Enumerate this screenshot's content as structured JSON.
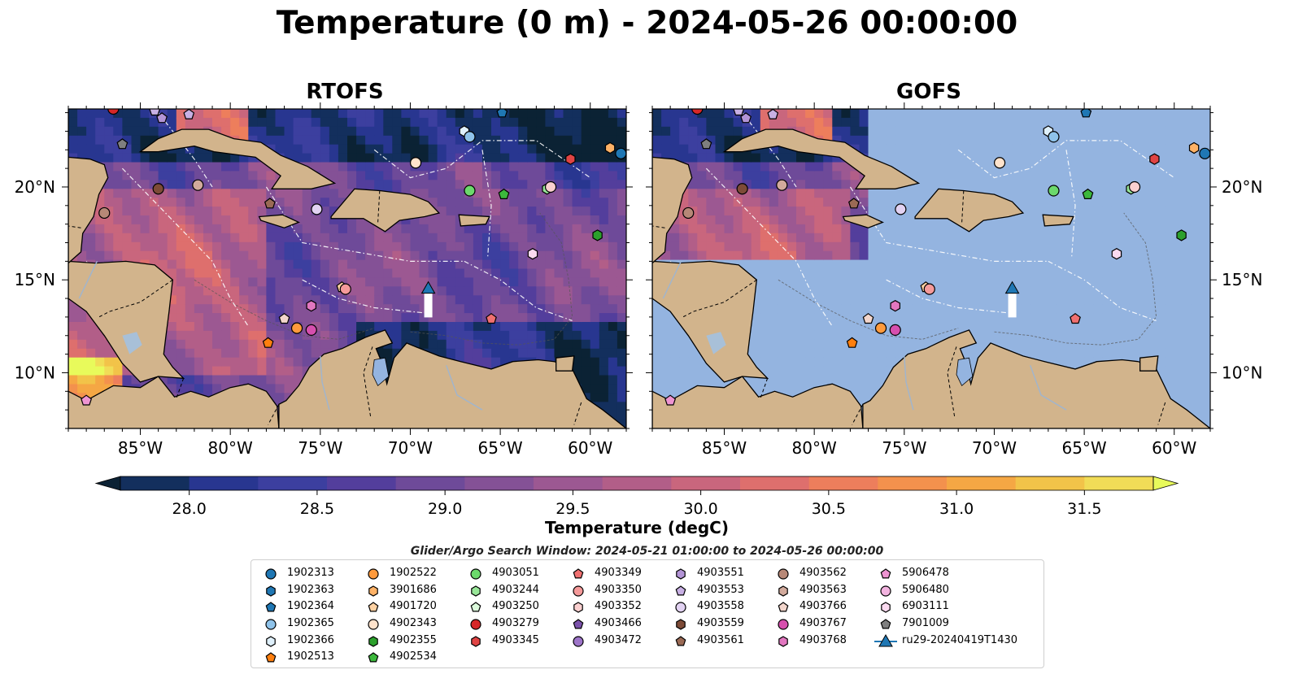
{
  "title": "Temperature (0 m) - 2024-05-26 00:00:00",
  "panels": [
    {
      "title": "RTOFS"
    },
    {
      "title": "GOFS"
    }
  ],
  "axes": {
    "lon_ticks": [
      "85°W",
      "80°W",
      "75°W",
      "70°W",
      "65°W",
      "60°W"
    ],
    "lat_ticks": [
      "20°N",
      "15°N",
      "10°N"
    ],
    "lon_range": [
      -89,
      -58
    ],
    "lat_range": [
      7,
      24.2
    ],
    "lon_values": [
      -85,
      -80,
      -75,
      -70,
      -65,
      -60
    ],
    "lat_values": [
      20,
      15,
      10
    ]
  },
  "colorbar": {
    "label": "Temperature (degC)",
    "ticks": [
      "28.0",
      "28.5",
      "29.0",
      "29.5",
      "30.0",
      "30.5",
      "31.0",
      "31.5"
    ],
    "min": 28.0,
    "max": 31.5,
    "step": 0.25,
    "extend": "both",
    "colors": [
      "#0b2234",
      "#132f5d",
      "#283690",
      "#3c3f9f",
      "#533e9c",
      "#6e4a99",
      "#845196",
      "#9c5892",
      "#b25e88",
      "#c9667d",
      "#de6f6d",
      "#ed7e5c",
      "#f3914d",
      "#f5a744",
      "#f2c349",
      "#f1dc57",
      "#e8fa5b"
    ]
  },
  "search_window": "Glider/Argo Search Window: 2024-05-21 01:00:00 to 2024-05-26 00:00:00",
  "legend": {
    "columns": [
      [
        {
          "label": "1902313",
          "marker": "circle",
          "color": "#1f77b4"
        },
        {
          "label": "1902363",
          "marker": "hexagon",
          "color": "#1f77b4"
        },
        {
          "label": "1902364",
          "marker": "pentagon",
          "color": "#1f77b4"
        },
        {
          "label": "1902365",
          "marker": "circle",
          "color": "#8fc3ea"
        },
        {
          "label": "1902366",
          "marker": "hexagon",
          "color": "#dff0fb"
        },
        {
          "label": "1902513",
          "marker": "pentagon",
          "color": "#ff7f0e"
        }
      ],
      [
        {
          "label": "1902522",
          "marker": "circle",
          "color": "#ff9a3c"
        },
        {
          "label": "3901686",
          "marker": "hexagon",
          "color": "#ffb266"
        },
        {
          "label": "4901720",
          "marker": "pentagon",
          "color": "#ffd2a3"
        },
        {
          "label": "4902343",
          "marker": "circle",
          "color": "#ffe3cc"
        },
        {
          "label": "4902355",
          "marker": "hexagon",
          "color": "#2ca02c"
        },
        {
          "label": "4902534",
          "marker": "pentagon",
          "color": "#3cb83c"
        }
      ],
      [
        {
          "label": "4903051",
          "marker": "circle",
          "color": "#6cd96c"
        },
        {
          "label": "4903244",
          "marker": "hexagon",
          "color": "#98e698"
        },
        {
          "label": "4903250",
          "marker": "pentagon",
          "color": "#dcfadc"
        },
        {
          "label": "4903279",
          "marker": "circle",
          "color": "#d62728"
        },
        {
          "label": "4903345",
          "marker": "hexagon",
          "color": "#e04444"
        }
      ],
      [
        {
          "label": "4903349",
          "marker": "pentagon",
          "color": "#f07070"
        },
        {
          "label": "4903350",
          "marker": "circle",
          "color": "#f59a9a"
        },
        {
          "label": "4903352",
          "marker": "hexagon",
          "color": "#fbd0d0"
        },
        {
          "label": "4903466",
          "marker": "pentagon",
          "color": "#7b52ab"
        },
        {
          "label": "4903472",
          "marker": "circle",
          "color": "#9d74c8"
        }
      ],
      [
        {
          "label": "4903551",
          "marker": "hexagon",
          "color": "#b394d6"
        },
        {
          "label": "4903553",
          "marker": "pentagon",
          "color": "#c8b0e4"
        },
        {
          "label": "4903558",
          "marker": "circle",
          "color": "#e2d2f2"
        },
        {
          "label": "4903559",
          "marker": "hexagon",
          "color": "#7d4b37"
        },
        {
          "label": "4903561",
          "marker": "pentagon",
          "color": "#9a6a55"
        }
      ],
      [
        {
          "label": "4903562",
          "marker": "circle",
          "color": "#b78877"
        },
        {
          "label": "4903563",
          "marker": "hexagon",
          "color": "#d2aa9c"
        },
        {
          "label": "4903766",
          "marker": "pentagon",
          "color": "#f3d6cc"
        },
        {
          "label": "4903767",
          "marker": "circle",
          "color": "#d64fae"
        },
        {
          "label": "4903768",
          "marker": "hexagon",
          "color": "#e277c0"
        }
      ],
      [
        {
          "label": "5906478",
          "marker": "pentagon",
          "color": "#ee94d2"
        },
        {
          "label": "5906480",
          "marker": "circle",
          "color": "#f2b3df"
        },
        {
          "label": "6903111",
          "marker": "hexagon",
          "color": "#fbdaf0"
        },
        {
          "label": "7901009",
          "marker": "pentagon",
          "color": "#7f7f7f"
        },
        {
          "label": "ru29-20240419T1430",
          "marker": "triangle-line",
          "color": "#1f77b4"
        }
      ]
    ]
  },
  "floats": [
    {
      "lon": -86.5,
      "lat": 24.2,
      "marker": "circle",
      "color": "#d62728"
    },
    {
      "lon": -84.2,
      "lat": 24.1,
      "marker": "pentagon",
      "color": "#c8b0e4"
    },
    {
      "lon": -83.8,
      "lat": 23.7,
      "marker": "pentagon",
      "color": "#b394d6"
    },
    {
      "lon": -82.3,
      "lat": 23.9,
      "marker": "pentagon",
      "color": "#c8b0e4"
    },
    {
      "lon": -86.0,
      "lat": 22.3,
      "marker": "pentagon",
      "color": "#7f7f7f"
    },
    {
      "lon": -84.0,
      "lat": 19.9,
      "marker": "circle",
      "color": "#7d4b37"
    },
    {
      "lon": -81.8,
      "lat": 20.1,
      "marker": "circle",
      "color": "#d2aa9c"
    },
    {
      "lon": -77.8,
      "lat": 19.1,
      "marker": "pentagon",
      "color": "#9a6a55"
    },
    {
      "lon": -87.0,
      "lat": 18.6,
      "marker": "circle",
      "color": "#b78877"
    },
    {
      "lon": -75.2,
      "lat": 18.8,
      "marker": "circle",
      "color": "#e2d2f2"
    },
    {
      "lon": -69.7,
      "lat": 21.3,
      "marker": "circle",
      "color": "#ffe3cc"
    },
    {
      "lon": -67.0,
      "lat": 23.0,
      "marker": "hexagon",
      "color": "#dff0fb"
    },
    {
      "lon": -66.7,
      "lat": 22.7,
      "marker": "circle",
      "color": "#8fc3ea"
    },
    {
      "lon": -64.9,
      "lat": 24.0,
      "marker": "pentagon",
      "color": "#1f77b4"
    },
    {
      "lon": -66.7,
      "lat": 19.8,
      "marker": "circle",
      "color": "#6cd96c"
    },
    {
      "lon": -64.8,
      "lat": 19.6,
      "marker": "pentagon",
      "color": "#3cb83c"
    },
    {
      "lon": -61.1,
      "lat": 21.5,
      "marker": "hexagon",
      "color": "#e04444"
    },
    {
      "lon": -58.9,
      "lat": 22.1,
      "marker": "hexagon",
      "color": "#ffb266"
    },
    {
      "lon": -58.3,
      "lat": 21.8,
      "marker": "circle",
      "color": "#1f77b4"
    },
    {
      "lon": -62.4,
      "lat": 19.9,
      "marker": "hexagon",
      "color": "#98e698"
    },
    {
      "lon": -62.2,
      "lat": 20.0,
      "marker": "circle",
      "color": "#fbd0d0"
    },
    {
      "lon": -59.6,
      "lat": 17.4,
      "marker": "hexagon",
      "color": "#2ca02c"
    },
    {
      "lon": -63.2,
      "lat": 16.4,
      "marker": "hexagon",
      "color": "#fbdaf0"
    },
    {
      "lon": -73.8,
      "lat": 14.6,
      "marker": "pentagon",
      "color": "#ffd2a3"
    },
    {
      "lon": -73.6,
      "lat": 14.5,
      "marker": "circle",
      "color": "#f59a9a"
    },
    {
      "lon": -75.5,
      "lat": 13.6,
      "marker": "hexagon",
      "color": "#e277c0"
    },
    {
      "lon": -77.0,
      "lat": 12.9,
      "marker": "pentagon",
      "color": "#f3d6cc"
    },
    {
      "lon": -76.3,
      "lat": 12.4,
      "marker": "circle",
      "color": "#ff9a3c"
    },
    {
      "lon": -75.5,
      "lat": 12.3,
      "marker": "circle",
      "color": "#d64fae"
    },
    {
      "lon": -77.9,
      "lat": 11.6,
      "marker": "pentagon",
      "color": "#ff7f0e"
    },
    {
      "lon": -65.5,
      "lat": 12.9,
      "marker": "pentagon",
      "color": "#f07070"
    },
    {
      "lon": -88.0,
      "lat": 8.5,
      "marker": "pentagon",
      "color": "#ee94d2"
    }
  ],
  "glider": {
    "label": "ru29-20240419T1430",
    "lon": -69.0,
    "lat": 14.5,
    "track_end_lat": 13.0
  }
}
